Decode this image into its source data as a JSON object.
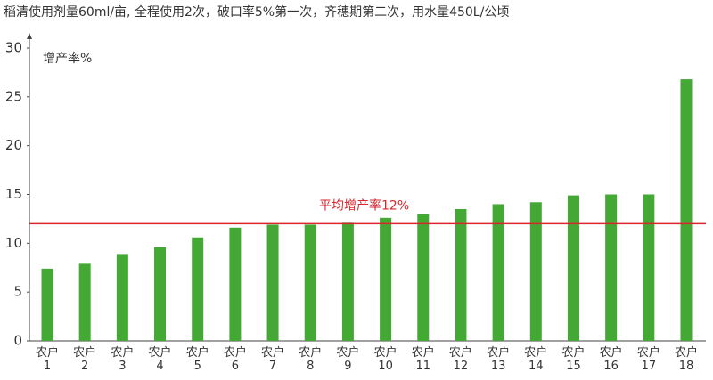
{
  "chart_data": {
    "type": "bar",
    "title": "稻清使用剂量60ml/亩, 全程使用2次，破口率5%第一次，齐穗期第二次，用水量450L/公顷",
    "y_label": "增产率%",
    "categories": [
      "农户\n1",
      "农户\n2",
      "农户\n3",
      "农户\n4",
      "农户\n5",
      "农户\n6",
      "农户\n7",
      "农户\n8",
      "农户\n9",
      "农户\n10",
      "农户\n11",
      "农户\n12",
      "农户\n13",
      "农户\n14",
      "农户\n15",
      "农户\n16",
      "农户\n17",
      "农户\n18"
    ],
    "values": [
      7.4,
      7.9,
      8.9,
      9.6,
      10.6,
      11.6,
      11.9,
      11.9,
      12.1,
      12.6,
      13.0,
      13.5,
      14.0,
      14.2,
      14.9,
      15.0,
      15.0,
      26.8
    ],
    "color": "#43a834",
    "ylim": [
      0,
      30
    ],
    "yticks": [
      0,
      5,
      10,
      15,
      20,
      25,
      30
    ],
    "reference_line": {
      "value": 12,
      "label": "平均增产率12%",
      "color": "#d9262c"
    }
  }
}
